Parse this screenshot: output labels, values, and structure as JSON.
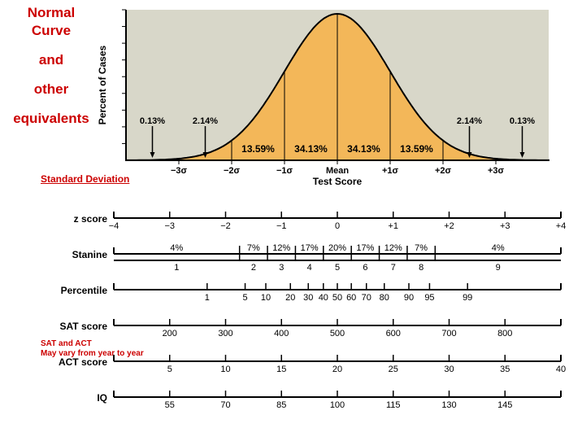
{
  "title_lines": [
    "Normal Curve",
    "and",
    "other",
    "equivalents"
  ],
  "sd_text": "Standard Deviation",
  "sat_act_note_lines": [
    "SAT and ACT",
    "May vary from year to year"
  ],
  "chart": {
    "type": "normal-curve",
    "background_color": "#d8d7c9",
    "curve_fill": "#f3b759",
    "curve_stroke": "#000000",
    "curve_stroke_width": 2,
    "y_axis_label": "Percent of Cases",
    "x_axis_label": "Test Score",
    "label_fontsize": 12,
    "tick_fontsize": 11,
    "sigma_ticks": [
      "−3σ",
      "−2σ",
      "−1σ",
      "Mean",
      "+1σ",
      "+2σ",
      "+3σ"
    ],
    "sigma_positions_z": [
      -3,
      -2,
      -1,
      0,
      1,
      2,
      3
    ],
    "area_percents": [
      "0.13%",
      "2.14%",
      "13.59%",
      "34.13%",
      "34.13%",
      "13.59%",
      "2.14%",
      "0.13%"
    ],
    "area_label_z": [
      -3.5,
      -2.5,
      -1.5,
      -0.5,
      0.5,
      1.5,
      2.5,
      3.5
    ],
    "area_label_arrow": [
      true,
      true,
      false,
      false,
      false,
      false,
      true,
      true
    ],
    "y_ticks_count": 9
  },
  "scales": [
    {
      "name": "z score",
      "ticks": [
        {
          "z": -4,
          "label": "−4",
          "major": true
        },
        {
          "z": -3,
          "label": "−3",
          "major": true
        },
        {
          "z": -2,
          "label": "−2",
          "major": true
        },
        {
          "z": -1,
          "label": "−1",
          "major": true
        },
        {
          "z": 0,
          "label": "0",
          "major": true
        },
        {
          "z": 1,
          "label": "+1",
          "major": true
        },
        {
          "z": 2,
          "label": "+2",
          "major": true
        },
        {
          "z": 3,
          "label": "+3",
          "major": true
        },
        {
          "z": 4,
          "label": "+4",
          "major": true
        }
      ]
    },
    {
      "name": "Stanine",
      "bands": [
        {
          "z_from": -4,
          "z_to": -1.75,
          "pct": "4%",
          "num": "1"
        },
        {
          "z_from": -1.75,
          "z_to": -1.25,
          "pct": "7%",
          "num": "2"
        },
        {
          "z_from": -1.25,
          "z_to": -0.75,
          "pct": "12%",
          "num": "3"
        },
        {
          "z_from": -0.75,
          "z_to": -0.25,
          "pct": "17%",
          "num": "4"
        },
        {
          "z_from": -0.25,
          "z_to": 0.25,
          "pct": "20%",
          "num": "5"
        },
        {
          "z_from": 0.25,
          "z_to": 0.75,
          "pct": "17%",
          "num": "6"
        },
        {
          "z_from": 0.75,
          "z_to": 1.25,
          "pct": "12%",
          "num": "7"
        },
        {
          "z_from": 1.25,
          "z_to": 1.75,
          "pct": "7%",
          "num": "8"
        },
        {
          "z_from": 1.75,
          "z_to": 4,
          "pct": "4%",
          "num": "9"
        }
      ]
    },
    {
      "name": "Percentile",
      "ticks": [
        {
          "z": -2.33,
          "label": "1",
          "major": true
        },
        {
          "z": -1.65,
          "label": "5",
          "major": true
        },
        {
          "z": -1.28,
          "label": "10",
          "major": true
        },
        {
          "z": -0.84,
          "label": "20",
          "major": true
        },
        {
          "z": -0.52,
          "label": "30",
          "major": true
        },
        {
          "z": -0.25,
          "label": "40",
          "major": true
        },
        {
          "z": 0,
          "label": "50",
          "major": true
        },
        {
          "z": 0.25,
          "label": "60",
          "major": true
        },
        {
          "z": 0.52,
          "label": "70",
          "major": true
        },
        {
          "z": 0.84,
          "label": "80",
          "major": true
        },
        {
          "z": 1.28,
          "label": "90",
          "major": true
        },
        {
          "z": 1.65,
          "label": "95",
          "major": true
        },
        {
          "z": 2.33,
          "label": "99",
          "major": true
        }
      ]
    },
    {
      "name": "SAT score",
      "ticks": [
        {
          "z": -3,
          "label": "200",
          "major": true
        },
        {
          "z": -2,
          "label": "300",
          "major": true
        },
        {
          "z": -1,
          "label": "400",
          "major": true
        },
        {
          "z": 0,
          "label": "500",
          "major": true
        },
        {
          "z": 1,
          "label": "600",
          "major": true
        },
        {
          "z": 2,
          "label": "700",
          "major": true
        },
        {
          "z": 3,
          "label": "800",
          "major": true
        }
      ]
    },
    {
      "name": "ACT score",
      "ticks": [
        {
          "z": -3,
          "label": "5",
          "major": true
        },
        {
          "z": -2,
          "label": "10",
          "major": true
        },
        {
          "z": -1,
          "label": "15",
          "major": true
        },
        {
          "z": 0,
          "label": "20",
          "major": true
        },
        {
          "z": 1,
          "label": "25",
          "major": true
        },
        {
          "z": 2,
          "label": "30",
          "major": true
        },
        {
          "z": 3,
          "label": "35",
          "major": true
        },
        {
          "z": 4,
          "label": "40",
          "major": true
        }
      ]
    },
    {
      "name": "IQ",
      "ticks": [
        {
          "z": -3,
          "label": "55",
          "major": true
        },
        {
          "z": -2,
          "label": "70",
          "major": true
        },
        {
          "z": -1,
          "label": "85",
          "major": true
        },
        {
          "z": 0,
          "label": "100",
          "major": true
        },
        {
          "z": 1,
          "label": "115",
          "major": true
        },
        {
          "z": 2,
          "label": "130",
          "major": true
        },
        {
          "z": 3,
          "label": "145",
          "major": true
        }
      ]
    }
  ]
}
